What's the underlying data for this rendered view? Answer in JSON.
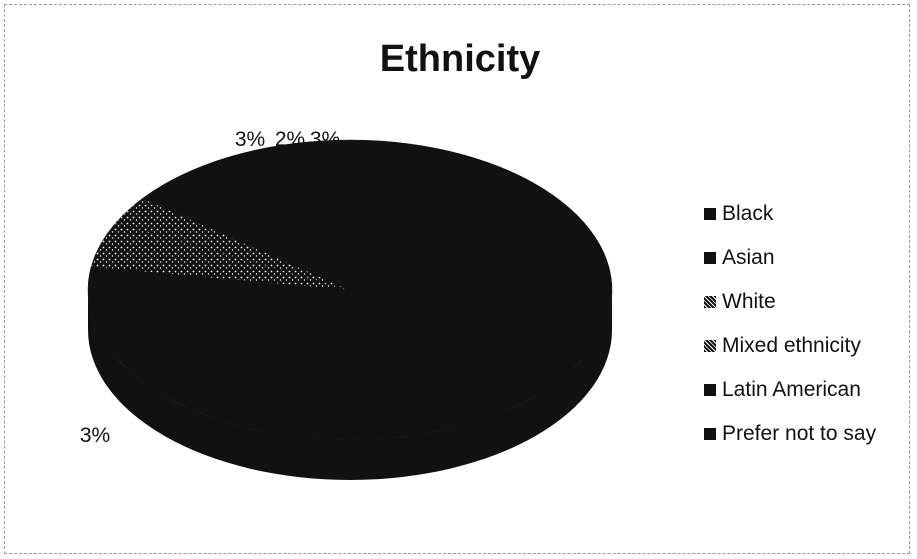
{
  "chart_data": {
    "type": "pie",
    "title": "Ethnicity",
    "categories": [
      "Black",
      "Asian",
      "White",
      "Mixed ethnicity",
      "Latin American",
      "Prefer not to say"
    ],
    "values": [
      84,
      3,
      5,
      3,
      2,
      3
    ],
    "data_labels": [
      "",
      "3%",
      "",
      "3%",
      "2%",
      "3%"
    ],
    "legend_position": "right",
    "colors": [
      "#111111",
      "#111111",
      "#111111",
      "#111111",
      "#111111",
      "#111111"
    ],
    "style": "3d"
  }
}
